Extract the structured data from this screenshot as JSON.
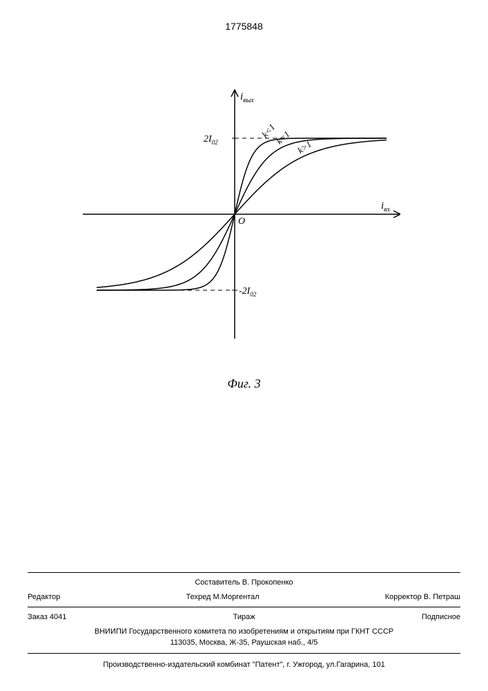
{
  "page_number": "1775848",
  "figure_caption": "Фиг. 3",
  "chart": {
    "type": "line",
    "y_axis_label": "i_вых",
    "x_axis_label": "i_вx",
    "y_asymptote_pos_label": "2I_02",
    "y_asymptote_neg_label": "-2I_02",
    "origin_label": "O",
    "curves": [
      {
        "label": "k<1",
        "k": 0.5
      },
      {
        "label": "k=1",
        "k": 1.0
      },
      {
        "label": "k>1",
        "k": 2.0
      }
    ],
    "axis_color": "#000000",
    "curve_color": "#000000",
    "dash_color": "#000000",
    "background_color": "#ffffff",
    "line_width": 1.5,
    "x_range": [
      -220,
      240
    ],
    "y_range": [
      -180,
      180
    ],
    "asymptote_y": 110
  },
  "footer": {
    "compiler_label": "Составитель",
    "compiler": "В. Прокопенко",
    "editor_label": "Редактор",
    "techred_label": "Техред",
    "techred": "М.Моргентал",
    "corrector_label": "Корректор",
    "corrector": "В. Петраш",
    "order_label": "Заказ",
    "order": "4041",
    "tirazh_label": "Тираж",
    "podpisnoe": "Подписное",
    "org": "ВНИИПИ Государственного комитета по изобретениям и открытиям при ГКНТ СССР",
    "org_addr": "113035, Москва, Ж-35, Раушская наб., 4/5",
    "print": "Производственно-издательский комбинат \"Патент\", г. Ужгород, ул.Гагарина, 101"
  }
}
